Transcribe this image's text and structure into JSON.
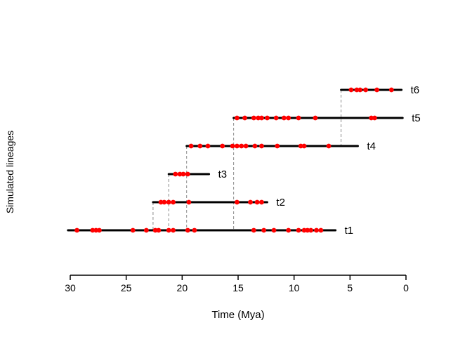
{
  "chart_data": {
    "type": "line",
    "subtype": "lineage-duration-plot",
    "title": "",
    "xlabel": "Time (Mya)",
    "ylabel": "Simulated lineages",
    "x_ticks": [
      "30",
      "25",
      "20",
      "15",
      "10",
      "5",
      "0"
    ],
    "x_tick_values": [
      30,
      25,
      20,
      15,
      10,
      5,
      0
    ],
    "x_range": [
      30,
      0
    ],
    "grid": "off",
    "colors": {
      "lineage": "#000000",
      "event": "#ff0000",
      "origin_dash": "#8a8a8a",
      "axis": "#000000"
    },
    "lineages": [
      {
        "label": "t1",
        "row": 1,
        "start": 30.2,
        "end": 6.3,
        "origin_parent_row": null,
        "events": [
          29.4,
          28.0,
          27.7,
          27.4,
          24.4,
          23.2,
          22.4,
          22.1,
          21.2,
          20.8,
          19.5,
          18.9,
          13.6,
          12.7,
          11.8,
          10.5,
          9.6,
          9.1,
          8.8,
          8.5,
          8.0,
          7.6
        ]
      },
      {
        "label": "t2",
        "row": 2,
        "start": 22.6,
        "end": 12.4,
        "origin_parent_row": 1,
        "events": [
          21.9,
          21.6,
          21.2,
          20.8,
          19.4,
          15.1,
          13.9,
          13.3,
          12.9
        ]
      },
      {
        "label": "t3",
        "row": 3,
        "start": 21.2,
        "end": 17.6,
        "origin_parent_row": 1,
        "events": [
          20.6,
          20.2,
          19.9,
          19.5
        ]
      },
      {
        "label": "t4",
        "row": 4,
        "start": 19.6,
        "end": 4.3,
        "origin_parent_row": 1,
        "events": [
          19.2,
          18.4,
          17.7,
          16.4,
          15.5,
          15.1,
          14.7,
          14.3,
          13.5,
          12.9,
          11.5,
          9.4,
          9.1,
          6.9
        ]
      },
      {
        "label": "t5",
        "row": 5,
        "start": 15.4,
        "end": 0.3,
        "origin_parent_row": 1,
        "events": [
          15.1,
          14.4,
          13.6,
          13.2,
          12.9,
          12.4,
          11.6,
          10.9,
          10.5,
          9.6,
          8.1,
          3.1,
          2.8
        ]
      },
      {
        "label": "t6",
        "row": 6,
        "start": 5.8,
        "end": 0.4,
        "origin_parent_row": 4,
        "events": [
          4.9,
          4.4,
          4.1,
          3.6,
          2.6,
          1.3
        ]
      }
    ]
  }
}
